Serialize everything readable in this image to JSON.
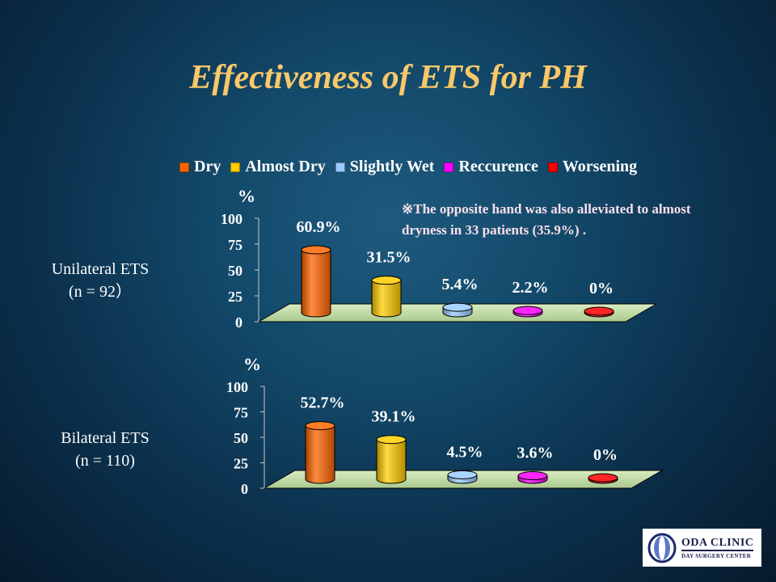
{
  "title": "Effectiveness of ETS for PH",
  "legend": [
    {
      "label": "Dry",
      "color": "#ff6600"
    },
    {
      "label": "Almost Dry",
      "color": "#ffcc00"
    },
    {
      "label": "Slightly Wet",
      "color": "#99ccff"
    },
    {
      "label": "Reccurence",
      "color": "#ff00ff"
    },
    {
      "label": "Worsening",
      "color": "#ff0000"
    }
  ],
  "note": "※The opposite hand was also alleviated to almost dryness in 33 patients (35.9%) .",
  "chart_data": [
    {
      "type": "bar",
      "group_label": [
        "Unilateral ETS",
        "(n = 92）"
      ],
      "ylabel": "%",
      "ylim": [
        0,
        100
      ],
      "yticks": [
        "100",
        "75",
        "50",
        "25",
        "0"
      ],
      "categories": [
        "Dry",
        "Almost Dry",
        "Slightly Wet",
        "Reccurence",
        "Worsening"
      ],
      "values": [
        60.9,
        31.5,
        5.4,
        2.2,
        0
      ],
      "data_labels": [
        "60.9%",
        "31.5%",
        "5.4%",
        "2.2%",
        "0%"
      ]
    },
    {
      "type": "bar",
      "group_label": [
        "Bilateral ETS",
        "(n = 110)"
      ],
      "ylabel": "%",
      "ylim": [
        0,
        100
      ],
      "yticks": [
        "100",
        "75",
        "50",
        "25",
        "0"
      ],
      "categories": [
        "Dry",
        "Almost Dry",
        "Slightly Wet",
        "Reccurence",
        "Worsening"
      ],
      "values": [
        52.7,
        39.1,
        4.5,
        3.6,
        0
      ],
      "data_labels": [
        "52.7%",
        "39.1%",
        "4.5%",
        "3.6%",
        "0%"
      ]
    }
  ],
  "logo": {
    "name": "ODA CLINIC",
    "subtitle": "DAY SURGERY CENTER"
  }
}
